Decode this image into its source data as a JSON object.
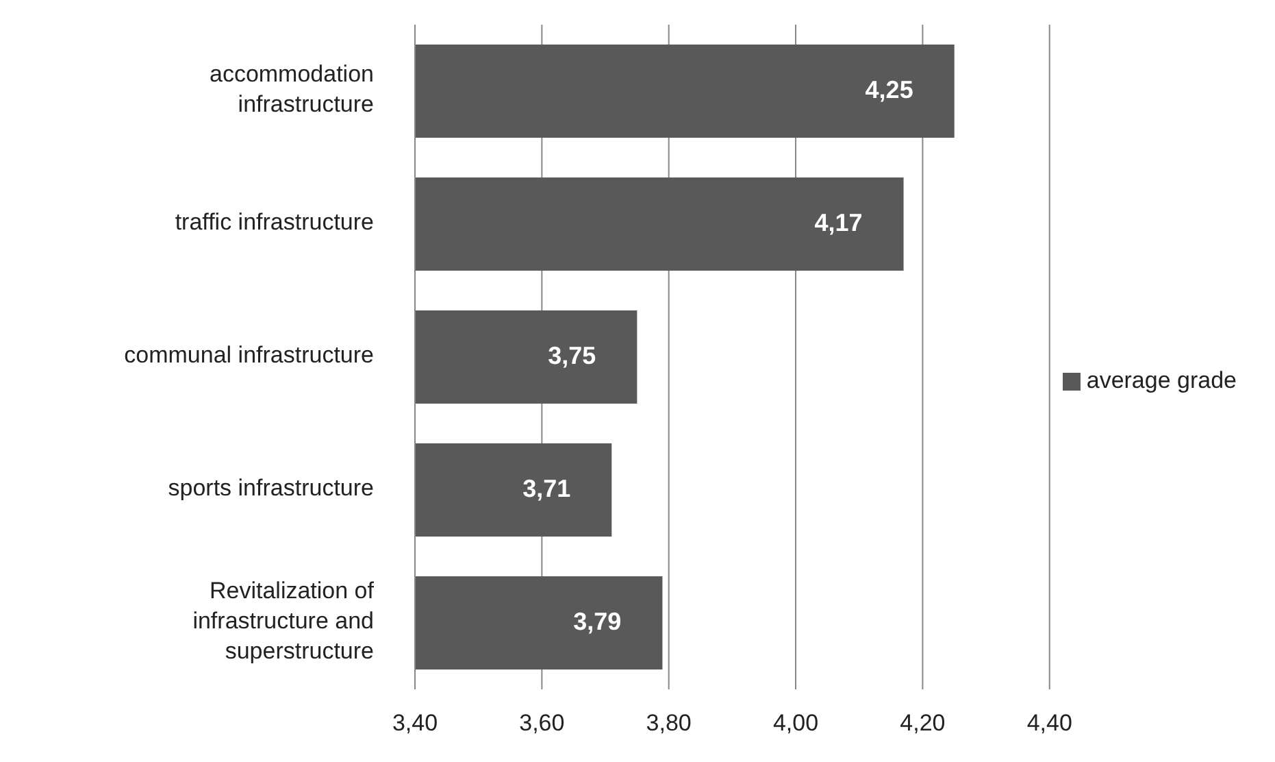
{
  "chart_data": {
    "type": "bar",
    "orientation": "horizontal",
    "categories": [
      "accommodation infrastructure",
      "traffic infrastructure",
      "communal infrastructure",
      "sports infrastructure",
      "Revitalization of infrastructure and superstructure"
    ],
    "series": [
      {
        "name": "average grade",
        "color": "#595959",
        "values": [
          4.25,
          4.17,
          3.75,
          3.71,
          3.79
        ],
        "value_labels": [
          "4,25",
          "4,17",
          "3,75",
          "3,71",
          "3,79"
        ]
      }
    ],
    "xlim": [
      3.4,
      4.4
    ],
    "xticks": [
      {
        "value": 3.4,
        "label": "3,40"
      },
      {
        "value": 3.6,
        "label": "3,60"
      },
      {
        "value": 3.8,
        "label": "3,80"
      },
      {
        "value": 4.0,
        "label": "4,00"
      },
      {
        "value": 4.2,
        "label": "4,20"
      },
      {
        "value": 4.4,
        "label": "4,40"
      }
    ],
    "grid": "x",
    "legend": "right"
  }
}
